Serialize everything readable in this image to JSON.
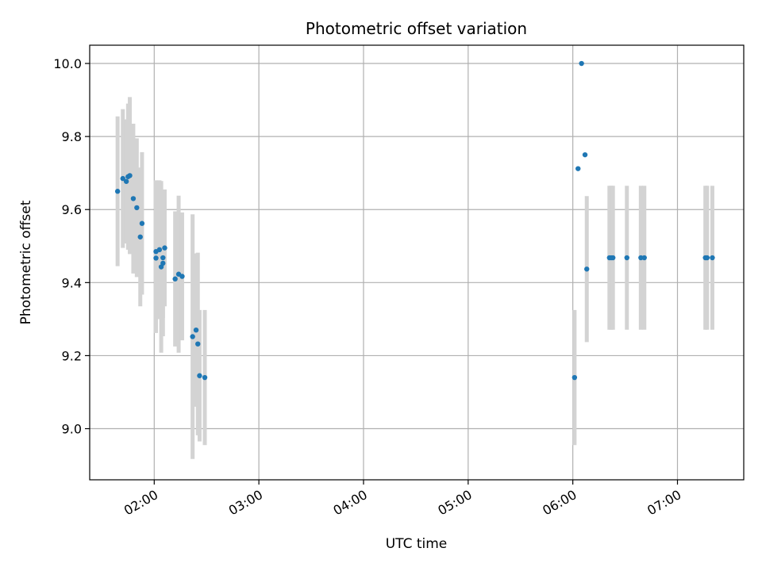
{
  "chart_data": {
    "type": "scatter",
    "title": "Photometric offset variation",
    "xlabel": "UTC time",
    "ylabel": "Photometric offset",
    "x_unit": "UTC time (HH:MM)",
    "xlim": [
      "01:23",
      "07:38"
    ],
    "ylim": [
      8.86,
      10.05
    ],
    "x_ticks": [
      "02:00",
      "03:00",
      "04:00",
      "05:00",
      "06:00",
      "07:00"
    ],
    "y_ticks": [
      9.0,
      9.2,
      9.4,
      9.6,
      9.8,
      10.0
    ],
    "y_tick_labels": [
      "9.0",
      "9.2",
      "9.4",
      "9.6",
      "9.8",
      "10.0"
    ],
    "grid": true,
    "legend": "none",
    "colors": {
      "points": "#1f77b4",
      "errorbars": "#d3d3d3",
      "grid": "#b0b0b0",
      "axes": "#000000"
    },
    "points": [
      {
        "x": "01:39",
        "y": 9.65,
        "err": 0.205
      },
      {
        "x": "01:42",
        "y": 9.685,
        "err": 0.19
      },
      {
        "x": "01:44",
        "y": 9.677,
        "err": 0.17
      },
      {
        "x": "01:45",
        "y": 9.69,
        "err": 0.2
      },
      {
        "x": "01:46",
        "y": 9.693,
        "err": 0.215
      },
      {
        "x": "01:48",
        "y": 9.63,
        "err": 0.205
      },
      {
        "x": "01:50",
        "y": 9.605,
        "err": 0.19
      },
      {
        "x": "01:52",
        "y": 9.525,
        "err": 0.19
      },
      {
        "x": "01:53",
        "y": 9.562,
        "err": 0.195
      },
      {
        "x": "02:01",
        "y": 9.485,
        "err": 0.195
      },
      {
        "x": "02:01",
        "y": 9.467,
        "err": 0.205
      },
      {
        "x": "02:03",
        "y": 9.49,
        "err": 0.19
      },
      {
        "x": "02:04",
        "y": 9.443,
        "err": 0.235
      },
      {
        "x": "02:05",
        "y": 9.468,
        "err": 0.165
      },
      {
        "x": "02:05",
        "y": 9.453,
        "err": 0.2
      },
      {
        "x": "02:06",
        "y": 9.495,
        "err": 0.16
      },
      {
        "x": "02:12",
        "y": 9.41,
        "err": 0.185
      },
      {
        "x": "02:14",
        "y": 9.423,
        "err": 0.215
      },
      {
        "x": "02:16",
        "y": 9.417,
        "err": 0.175
      },
      {
        "x": "02:22",
        "y": 9.252,
        "err": 0.335
      },
      {
        "x": "02:24",
        "y": 9.27,
        "err": 0.21
      },
      {
        "x": "02:25",
        "y": 9.232,
        "err": 0.25
      },
      {
        "x": "02:26",
        "y": 9.145,
        "err": 0.18
      },
      {
        "x": "02:29",
        "y": 9.14,
        "err": 0.185
      },
      {
        "x": "06:01",
        "y": 9.14,
        "err": 0.185
      },
      {
        "x": "06:03",
        "y": 9.712,
        "err": 0.0
      },
      {
        "x": "06:05",
        "y": 10.0,
        "err": 0.0
      },
      {
        "x": "06:07",
        "y": 9.75,
        "err": 0.0
      },
      {
        "x": "06:08",
        "y": 9.437,
        "err": 0.2
      },
      {
        "x": "06:21",
        "y": 9.468,
        "err": 0.197
      },
      {
        "x": "06:22",
        "y": 9.468,
        "err": 0.197
      },
      {
        "x": "06:23",
        "y": 9.468,
        "err": 0.197
      },
      {
        "x": "06:31",
        "y": 9.468,
        "err": 0.197
      },
      {
        "x": "06:39",
        "y": 9.468,
        "err": 0.197
      },
      {
        "x": "06:41",
        "y": 9.468,
        "err": 0.197
      },
      {
        "x": "07:16",
        "y": 9.468,
        "err": 0.197
      },
      {
        "x": "07:17",
        "y": 9.468,
        "err": 0.197
      },
      {
        "x": "07:20",
        "y": 9.468,
        "err": 0.197
      }
    ]
  }
}
